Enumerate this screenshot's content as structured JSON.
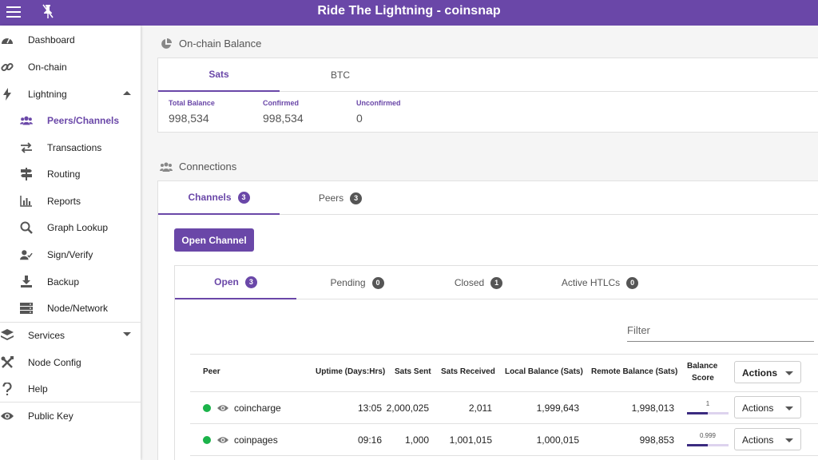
{
  "app": {
    "title": "Ride The Lightning - coinsnap",
    "accent_color": "#6a47a8"
  },
  "sidebar": {
    "items": [
      {
        "label": "Dashboard",
        "icon": "speedometer-icon"
      },
      {
        "label": "On-chain",
        "icon": "link-icon"
      },
      {
        "label": "Lightning",
        "icon": "bolt-icon",
        "expanded": true
      },
      {
        "label": "Peers/Channels",
        "icon": "users-icon",
        "active": true
      },
      {
        "label": "Transactions",
        "icon": "exchange-arrows-icon"
      },
      {
        "label": "Routing",
        "icon": "signpost-icon"
      },
      {
        "label": "Reports",
        "icon": "bar-chart-icon"
      },
      {
        "label": "Graph Lookup",
        "icon": "search-icon"
      },
      {
        "label": "Sign/Verify",
        "icon": "user-check-icon"
      },
      {
        "label": "Backup",
        "icon": "download-icon"
      },
      {
        "label": "Node/Network",
        "icon": "server-icon"
      },
      {
        "label": "Services",
        "icon": "layers-icon",
        "expanded": false
      },
      {
        "label": "Node Config",
        "icon": "tools-icon"
      },
      {
        "label": "Help",
        "icon": "question-icon"
      },
      {
        "label": "Public Key",
        "icon": "eye-icon"
      }
    ]
  },
  "onchain": {
    "heading": "On-chain Balance",
    "tabs": [
      {
        "label": "Sats"
      },
      {
        "label": "BTC"
      }
    ],
    "balances": [
      {
        "label": "Total Balance",
        "value": "998,534"
      },
      {
        "label": "Confirmed",
        "value": "998,534"
      },
      {
        "label": "Unconfirmed",
        "value": "0"
      }
    ]
  },
  "connections": {
    "heading": "Connections",
    "tabs": [
      {
        "label": "Channels",
        "count": "3"
      },
      {
        "label": "Peers",
        "count": "3"
      }
    ],
    "open_channel_label": "Open Channel",
    "channel_tabs": [
      {
        "label": "Open",
        "count": "3"
      },
      {
        "label": "Pending",
        "count": "0"
      },
      {
        "label": "Closed",
        "count": "1"
      },
      {
        "label": "Active HTLCs",
        "count": "0"
      }
    ],
    "filter_placeholder": "Filter",
    "table": {
      "headers": {
        "peer": "Peer",
        "uptime": "Uptime (Days:Hrs)",
        "sent": "Sats Sent",
        "received": "Sats Received",
        "local": "Local Balance (Sats)",
        "remote": "Remote Balance (Sats)",
        "score_line1": "Balance",
        "score_line2": "Score",
        "actions": "Actions"
      },
      "rows": [
        {
          "peer": "coincharge",
          "uptime": "13:05",
          "sent": "2,000,025",
          "received": "2,011",
          "local": "1,999,643",
          "remote": "1,998,013",
          "score": "1",
          "score_fraction": 0.5,
          "status_color": "#1bb34a",
          "actions": "Actions"
        },
        {
          "peer": "coinpages",
          "uptime": "09:16",
          "sent": "1,000",
          "received": "1,001,015",
          "local": "1,000,015",
          "remote": "998,853",
          "score": "0.999",
          "score_fraction": 0.5,
          "status_color": "#1bb34a",
          "actions": "Actions"
        }
      ]
    }
  }
}
